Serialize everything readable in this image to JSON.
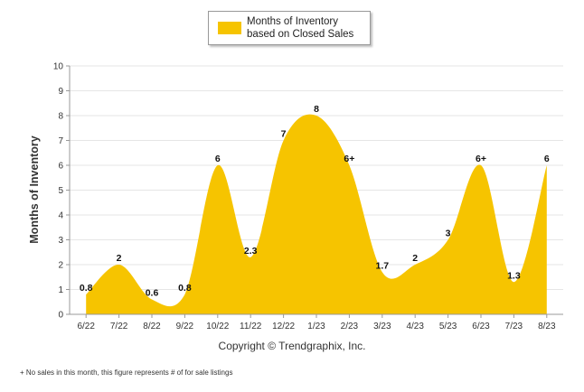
{
  "colors": {
    "area": "#f6c400",
    "grid": "#e6e6e6",
    "axis": "#999999"
  },
  "legend": {
    "label": "Months of Inventory based on Closed Sales"
  },
  "copyright": "Copyright © Trendgraphix, Inc.",
  "footnote": "+ No sales in this month, this figure represents # of for sale listings",
  "chart_data": {
    "type": "area",
    "ylabel": "Months of Inventory",
    "ylim": [
      0,
      10
    ],
    "yticks": [
      "0",
      "1",
      "2",
      "3",
      "4",
      "5",
      "6",
      "7",
      "8",
      "9",
      "10"
    ],
    "grid": true,
    "legend_position": "top-center",
    "categories": [
      "6/22",
      "7/22",
      "8/22",
      "9/22",
      "10/22",
      "11/22",
      "12/22",
      "1/23",
      "2/23",
      "3/23",
      "4/23",
      "5/23",
      "6/23",
      "7/23",
      "8/23"
    ],
    "series": [
      {
        "name": "Months of Inventory based on Closed Sales",
        "values": [
          0.8,
          2,
          0.6,
          0.8,
          6,
          2.3,
          7,
          8,
          6,
          1.7,
          2,
          3,
          6,
          1.3,
          6
        ],
        "labels": [
          "0.8",
          "2",
          "0.6",
          "0.8",
          "6",
          "2.3",
          "7",
          "8",
          "6+",
          "1.7",
          "2",
          "3",
          "6+",
          "1.3",
          "6"
        ]
      }
    ]
  }
}
